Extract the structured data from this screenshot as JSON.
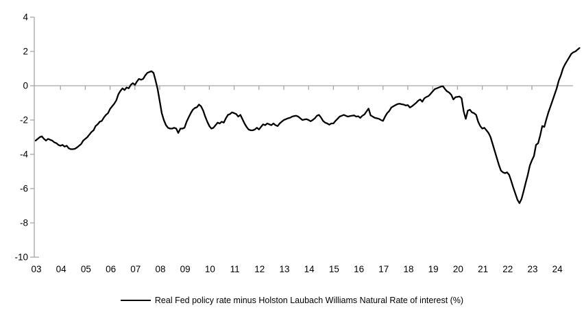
{
  "chart_data": {
    "type": "line",
    "title": "",
    "xlabel": "",
    "ylabel": "",
    "x_start_year": 2003,
    "x_frequency": "monthly",
    "x_tick_labels": [
      "03",
      "04",
      "05",
      "06",
      "07",
      "08",
      "09",
      "10",
      "11",
      "12",
      "13",
      "14",
      "15",
      "16",
      "17",
      "18",
      "19",
      "20",
      "21",
      "22",
      "23",
      "24"
    ],
    "y_ticks": [
      4,
      2,
      0,
      -2,
      -4,
      -6,
      -8,
      -10
    ],
    "ylim": [
      -10,
      4
    ],
    "grid": "zero-line-only",
    "legend_position": "bottom-center",
    "colors": {
      "series": "#000000",
      "axis": "#a6a6a6",
      "zero_line": "#a6a6a6",
      "labels": "#000000",
      "background": "#ffffff"
    },
    "series": [
      {
        "name": "Real Fed policy rate minus Holston Laubach Williams Natural Rate of interest (%)",
        "values": [
          -3.2,
          -3.1,
          -3.0,
          -2.95,
          -3.1,
          -3.2,
          -3.1,
          -3.15,
          -3.2,
          -3.3,
          -3.35,
          -3.45,
          -3.5,
          -3.45,
          -3.55,
          -3.5,
          -3.65,
          -3.7,
          -3.7,
          -3.68,
          -3.6,
          -3.5,
          -3.4,
          -3.2,
          -3.1,
          -3.0,
          -2.85,
          -2.7,
          -2.6,
          -2.35,
          -2.25,
          -2.1,
          -2.05,
          -1.85,
          -1.7,
          -1.6,
          -1.35,
          -1.2,
          -1.05,
          -0.85,
          -0.5,
          -0.3,
          -0.15,
          -0.25,
          -0.1,
          -0.15,
          0.05,
          0.15,
          0.05,
          0.25,
          0.4,
          0.35,
          0.4,
          0.6,
          0.75,
          0.8,
          0.85,
          0.75,
          0.3,
          -0.2,
          -0.9,
          -1.6,
          -2.0,
          -2.3,
          -2.45,
          -2.5,
          -2.5,
          -2.45,
          -2.5,
          -2.75,
          -2.5,
          -2.5,
          -2.45,
          -2.1,
          -1.85,
          -1.6,
          -1.4,
          -1.3,
          -1.25,
          -1.1,
          -1.2,
          -1.45,
          -1.8,
          -2.1,
          -2.35,
          -2.5,
          -2.45,
          -2.3,
          -2.15,
          -2.2,
          -2.1,
          -2.15,
          -1.9,
          -1.7,
          -1.65,
          -1.55,
          -1.6,
          -1.65,
          -1.8,
          -1.7,
          -1.95,
          -2.2,
          -2.4,
          -2.55,
          -2.6,
          -2.6,
          -2.55,
          -2.45,
          -2.55,
          -2.4,
          -2.25,
          -2.3,
          -2.2,
          -2.25,
          -2.3,
          -2.2,
          -2.3,
          -2.35,
          -2.2,
          -2.1,
          -2.0,
          -1.95,
          -1.9,
          -1.87,
          -1.8,
          -1.77,
          -1.75,
          -1.8,
          -1.9,
          -2.0,
          -1.97,
          -1.95,
          -2.0,
          -2.07,
          -2.0,
          -1.9,
          -1.75,
          -1.7,
          -1.85,
          -2.05,
          -2.15,
          -2.2,
          -2.27,
          -2.2,
          -2.2,
          -2.05,
          -1.93,
          -1.8,
          -1.75,
          -1.7,
          -1.75,
          -1.8,
          -1.77,
          -1.75,
          -1.73,
          -1.8,
          -1.78,
          -1.87,
          -1.75,
          -1.67,
          -1.5,
          -1.33,
          -1.73,
          -1.8,
          -1.87,
          -1.9,
          -1.93,
          -2.0,
          -2.05,
          -1.8,
          -1.6,
          -1.47,
          -1.27,
          -1.2,
          -1.13,
          -1.07,
          -1.05,
          -1.08,
          -1.1,
          -1.15,
          -1.13,
          -1.27,
          -1.2,
          -1.1,
          -1.0,
          -0.87,
          -0.8,
          -0.93,
          -0.73,
          -0.65,
          -0.6,
          -0.47,
          -0.33,
          -0.2,
          -0.15,
          -0.1,
          -0.05,
          -0.03,
          -0.2,
          -0.33,
          -0.4,
          -0.53,
          -0.8,
          -0.67,
          -0.65,
          -0.63,
          -0.73,
          -1.5,
          -1.93,
          -1.45,
          -1.4,
          -1.55,
          -1.6,
          -1.7,
          -2.1,
          -2.35,
          -2.5,
          -2.45,
          -2.6,
          -2.75,
          -3.0,
          -3.4,
          -3.8,
          -4.2,
          -4.6,
          -4.95,
          -5.05,
          -5.1,
          -5.05,
          -5.2,
          -5.55,
          -5.95,
          -6.3,
          -6.65,
          -6.85,
          -6.6,
          -6.15,
          -5.65,
          -5.2,
          -4.65,
          -4.35,
          -4.1,
          -3.45,
          -3.35,
          -2.9,
          -2.35,
          -2.4,
          -1.95,
          -1.55,
          -1.2,
          -0.85,
          -0.5,
          -0.15,
          0.3,
          0.6,
          1.0,
          1.25,
          1.45,
          1.65,
          1.85,
          1.95,
          2.0,
          2.1,
          2.2
        ]
      }
    ]
  }
}
